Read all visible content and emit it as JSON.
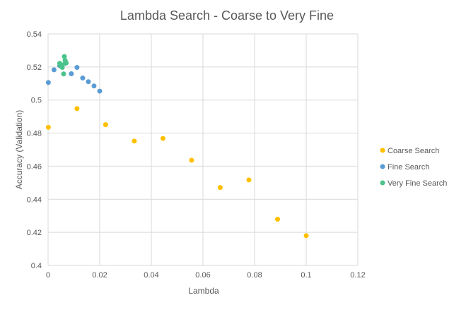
{
  "chart_data": {
    "type": "scatter",
    "title": "Lambda Search - Coarse to Very Fine",
    "xlabel": "Lambda",
    "ylabel": "Accuracy (Validation)",
    "xlim": [
      0,
      0.12
    ],
    "ylim": [
      0.4,
      0.54
    ],
    "xticks": [
      0,
      0.02,
      0.04,
      0.06,
      0.08,
      0.1,
      0.12
    ],
    "xtick_labels": [
      "0",
      "0.02",
      "0.04",
      "0.06",
      "0.08",
      "0.1",
      "0.12"
    ],
    "yticks": [
      0.4,
      0.42,
      0.44,
      0.46,
      0.48,
      0.5,
      0.52,
      0.54
    ],
    "ytick_labels": [
      "0.4",
      "0.42",
      "0.44",
      "0.46",
      "0.48",
      "0.5",
      "0.52",
      "0.54"
    ],
    "grid": "vertical-and-horizontal",
    "legend_position": "right",
    "series": [
      {
        "name": "Coarse Search",
        "color": "#FFC000",
        "points": [
          [
            0.0001,
            0.4835
          ],
          [
            0.0112,
            0.4948
          ],
          [
            0.0223,
            0.4851
          ],
          [
            0.0334,
            0.4752
          ],
          [
            0.0445,
            0.4768
          ],
          [
            0.0556,
            0.4636
          ],
          [
            0.0667,
            0.4471
          ],
          [
            0.0778,
            0.4517
          ],
          [
            0.0889,
            0.4279
          ],
          [
            0.1,
            0.418
          ]
        ]
      },
      {
        "name": "Fine Search",
        "color": "#5B9BD5",
        "points": [
          [
            0.0001,
            0.5106
          ],
          [
            0.0023,
            0.5183
          ],
          [
            0.0045,
            0.5208
          ],
          [
            0.0067,
            0.5223
          ],
          [
            0.009,
            0.5159
          ],
          [
            0.0112,
            0.5197
          ],
          [
            0.0134,
            0.5133
          ],
          [
            0.0156,
            0.5111
          ],
          [
            0.0178,
            0.5085
          ],
          [
            0.02,
            0.5054
          ]
        ]
      },
      {
        "name": "Very Fine Search",
        "color": "#4CC38A",
        "points": [
          [
            0.0045,
            0.5222
          ],
          [
            0.005,
            0.5204
          ],
          [
            0.0055,
            0.5197
          ],
          [
            0.006,
            0.5158
          ],
          [
            0.0063,
            0.5263
          ],
          [
            0.0066,
            0.5239
          ],
          [
            0.007,
            0.5224
          ],
          [
            0.0055,
            0.5212
          ],
          [
            0.0068,
            0.5228
          ],
          [
            0.0048,
            0.5213
          ]
        ]
      }
    ]
  }
}
